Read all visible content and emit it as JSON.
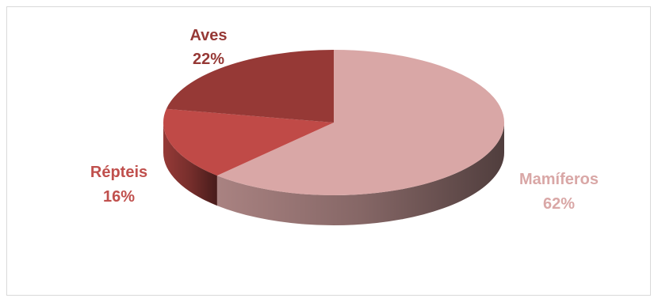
{
  "chart_data": {
    "type": "pie",
    "style": "3d",
    "slices": [
      {
        "label": "Mamíferos",
        "percent_label": "62%",
        "value": 62,
        "color": "#d9a7a6",
        "label_color": "#d9a7a6"
      },
      {
        "label": "Répteis",
        "percent_label": "16%",
        "value": 16,
        "color": "#c04a47",
        "label_color": "#c0504d"
      },
      {
        "label": "Aves",
        "percent_label": "22%",
        "value": 22,
        "color": "#963936",
        "label_color": "#963936"
      }
    ],
    "legend": "none"
  }
}
